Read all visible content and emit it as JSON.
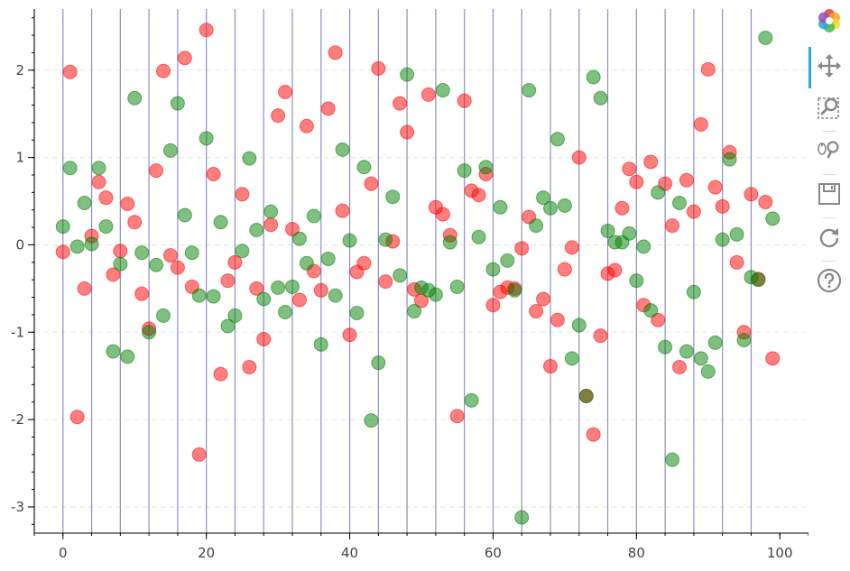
{
  "chart_data": {
    "type": "scatter",
    "title": "",
    "xlabel": "",
    "ylabel": "",
    "xlim": [
      -4,
      104
    ],
    "ylim": [
      -3.3,
      2.7
    ],
    "x_ticks": [
      0,
      20,
      40,
      60,
      80,
      100
    ],
    "y_ticks": [
      -3,
      -2,
      -1,
      0,
      1,
      2
    ],
    "y_grid": true,
    "vertical_lines": [
      -4,
      0,
      4,
      8,
      12,
      16,
      20,
      24,
      28,
      32,
      36,
      40,
      44,
      48,
      52,
      56,
      60,
      64,
      68,
      72,
      76,
      80,
      84,
      88,
      92,
      96
    ],
    "series": [
      {
        "color": "#ff0000",
        "x": [
          0,
          1,
          2,
          3,
          4,
          5,
          6,
          7,
          8,
          9,
          10,
          11,
          12,
          13,
          14,
          15,
          16,
          17,
          18,
          19,
          20,
          21,
          22,
          23,
          24,
          25,
          26,
          27,
          28,
          29,
          30,
          31,
          32,
          33,
          34,
          35,
          36,
          37,
          38,
          39,
          40,
          41,
          42,
          43,
          44,
          45,
          46,
          47,
          48,
          49,
          50,
          51,
          52,
          53,
          54,
          55,
          56,
          57,
          58,
          59,
          60,
          61,
          62,
          63,
          64,
          65,
          66,
          67,
          68,
          69,
          70,
          71,
          72,
          73,
          74,
          75,
          76,
          77,
          78,
          79,
          80,
          81,
          82,
          83,
          84,
          85,
          86,
          87,
          88,
          89,
          90,
          91,
          92,
          93,
          94,
          95,
          96,
          97,
          98,
          99
        ],
        "y": [
          -0.08,
          1.98,
          -1.97,
          -0.5,
          0.1,
          0.72,
          0.54,
          -0.34,
          -0.07,
          0.47,
          0.26,
          -0.56,
          -0.96,
          0.85,
          1.99,
          -0.12,
          -0.26,
          2.14,
          -0.48,
          -2.4,
          2.46,
          0.81,
          -1.48,
          -0.41,
          -0.2,
          0.58,
          -1.4,
          -0.5,
          -1.08,
          0.23,
          1.48,
          1.75,
          0.18,
          -0.63,
          1.36,
          -0.3,
          -0.52,
          1.56,
          2.2,
          0.39,
          -1.03,
          -0.31,
          -0.21,
          0.7,
          2.02,
          -0.42,
          0.04,
          1.62,
          1.29,
          -0.51,
          -0.64,
          1.72,
          0.43,
          0.35,
          0.11,
          -1.96,
          1.65,
          0.62,
          0.57,
          0.81,
          -0.69,
          -0.54,
          -0.49,
          -0.5,
          -0.04,
          0.32,
          -0.76,
          -0.62,
          -1.39,
          -0.86,
          -0.28,
          -0.03,
          1.0,
          -1.73,
          -2.17,
          -1.04,
          -0.33,
          -0.29,
          0.42,
          0.87,
          0.72,
          -0.69,
          0.95,
          -0.86,
          0.7,
          0.22,
          -1.4,
          0.74,
          0.38,
          1.38,
          2.01,
          0.66,
          0.44,
          1.06,
          -0.2,
          -1.0,
          0.58,
          -0.39,
          0.49,
          -1.3
        ]
      },
      {
        "color": "#008000",
        "x": [
          0,
          1,
          2,
          3,
          4,
          5,
          6,
          7,
          8,
          9,
          10,
          11,
          12,
          13,
          14,
          15,
          16,
          17,
          18,
          19,
          20,
          21,
          22,
          23,
          24,
          25,
          26,
          27,
          28,
          29,
          30,
          31,
          32,
          33,
          34,
          35,
          36,
          37,
          38,
          39,
          40,
          41,
          42,
          43,
          44,
          45,
          46,
          47,
          48,
          49,
          50,
          51,
          52,
          53,
          54,
          55,
          56,
          57,
          58,
          59,
          60,
          61,
          62,
          63,
          64,
          65,
          66,
          67,
          68,
          69,
          70,
          71,
          72,
          73,
          74,
          75,
          76,
          77,
          78,
          79,
          80,
          81,
          82,
          83,
          84,
          85,
          86,
          87,
          88,
          89,
          90,
          91,
          92,
          93,
          94,
          95,
          96,
          97,
          98,
          99
        ],
        "y": [
          0.21,
          0.88,
          -0.02,
          0.48,
          0.01,
          0.88,
          0.21,
          -1.22,
          -0.22,
          -1.28,
          1.68,
          -0.09,
          -1.0,
          -0.23,
          -0.81,
          1.08,
          1.62,
          0.34,
          -0.09,
          -0.58,
          1.22,
          -0.59,
          0.26,
          -0.93,
          -0.81,
          -0.07,
          0.99,
          0.17,
          -0.62,
          0.38,
          -0.49,
          -0.77,
          -0.48,
          0.07,
          -0.21,
          0.33,
          -1.14,
          -0.16,
          -0.58,
          1.09,
          0.05,
          -0.78,
          0.89,
          -2.01,
          -1.35,
          0.06,
          0.55,
          -0.35,
          1.95,
          -0.76,
          -0.49,
          -0.52,
          -0.57,
          1.77,
          0.03,
          -0.48,
          0.85,
          -1.78,
          0.09,
          0.89,
          -0.28,
          0.43,
          -0.18,
          -0.52,
          -3.12,
          1.77,
          0.22,
          0.54,
          0.42,
          1.21,
          0.45,
          -1.3,
          -0.92,
          -1.73,
          1.92,
          1.68,
          0.16,
          0.03,
          0.03,
          0.13,
          -0.41,
          -0.02,
          -0.75,
          0.6,
          -1.17,
          -2.46,
          0.48,
          -1.22,
          -0.54,
          -1.3,
          -1.45,
          -1.12,
          0.06,
          0.98,
          0.12,
          -1.09,
          -0.37,
          -0.4,
          2.37,
          0.3
        ]
      }
    ]
  },
  "toolbar": {
    "tools": [
      "bokeh-logo",
      "pan-tool",
      "box-zoom-tool",
      "wheel-zoom-tool",
      "save-tool",
      "reset-tool",
      "help-tool"
    ],
    "active_tool": "pan-tool"
  }
}
